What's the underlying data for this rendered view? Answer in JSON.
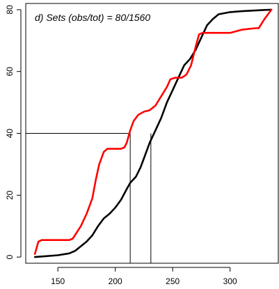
{
  "chart_data": {
    "type": "line",
    "title": "d) Sets (obs/tot) = 80/1560",
    "xlabel": "",
    "ylabel": "",
    "xlim": [
      122,
      342
    ],
    "ylim": [
      -2,
      82
    ],
    "x_ticks": [
      150,
      200,
      250,
      300
    ],
    "y_ticks": [
      0,
      20,
      40,
      60,
      80
    ],
    "grid": false,
    "legend": "none",
    "series": [
      {
        "color": "#000000",
        "points": [
          [
            130,
            0
          ],
          [
            140,
            0.3
          ],
          [
            150,
            0.6
          ],
          [
            160,
            1.2
          ],
          [
            165,
            2
          ],
          [
            170,
            3.5
          ],
          [
            175,
            5
          ],
          [
            180,
            7
          ],
          [
            185,
            10
          ],
          [
            190,
            12.5
          ],
          [
            195,
            14
          ],
          [
            200,
            16
          ],
          [
            205,
            18.5
          ],
          [
            210,
            22
          ],
          [
            213,
            24
          ],
          [
            218,
            26
          ],
          [
            222,
            29
          ],
          [
            225,
            32
          ],
          [
            230,
            37
          ],
          [
            235,
            41
          ],
          [
            240,
            45
          ],
          [
            245,
            50
          ],
          [
            250,
            54
          ],
          [
            255,
            58
          ],
          [
            260,
            62
          ],
          [
            265,
            64
          ],
          [
            270,
            67
          ],
          [
            275,
            71
          ],
          [
            280,
            75
          ],
          [
            285,
            77
          ],
          [
            290,
            78.5
          ],
          [
            300,
            79.2
          ],
          [
            310,
            79.5
          ],
          [
            320,
            79.7
          ],
          [
            330,
            79.9
          ],
          [
            336,
            80
          ]
        ]
      },
      {
        "color": "#ff0000",
        "points": [
          [
            130,
            1
          ],
          [
            133,
            5
          ],
          [
            136,
            5.5
          ],
          [
            140,
            5.5
          ],
          [
            150,
            5.5
          ],
          [
            160,
            5.5
          ],
          [
            163,
            6
          ],
          [
            170,
            10
          ],
          [
            175,
            14
          ],
          [
            180,
            19
          ],
          [
            183,
            25
          ],
          [
            186,
            30
          ],
          [
            190,
            34
          ],
          [
            193,
            35
          ],
          [
            200,
            35
          ],
          [
            205,
            35
          ],
          [
            208,
            35.5
          ],
          [
            210,
            37
          ],
          [
            213,
            41
          ],
          [
            216,
            44
          ],
          [
            220,
            46
          ],
          [
            225,
            47
          ],
          [
            230,
            47.5
          ],
          [
            235,
            49
          ],
          [
            240,
            52
          ],
          [
            245,
            55
          ],
          [
            248,
            57.5
          ],
          [
            252,
            58
          ],
          [
            258,
            58
          ],
          [
            262,
            59
          ],
          [
            266,
            62
          ],
          [
            270,
            68
          ],
          [
            273,
            72
          ],
          [
            276,
            72.5
          ],
          [
            300,
            72.5
          ],
          [
            310,
            73.5
          ],
          [
            322,
            74
          ],
          [
            325,
            74
          ],
          [
            330,
            77
          ],
          [
            336,
            80
          ]
        ]
      }
    ],
    "reference_lines": [
      {
        "x": 213,
        "y": 40
      },
      {
        "x": 231,
        "y": 40
      }
    ]
  }
}
